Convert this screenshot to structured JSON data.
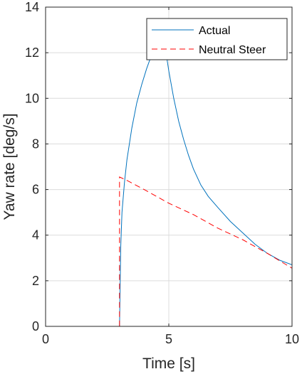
{
  "chart_data": {
    "type": "line",
    "title": "",
    "xlabel": "Time [s]",
    "ylabel": "Yaw rate [deg/s]",
    "xlim": [
      0,
      10
    ],
    "ylim": [
      0,
      14
    ],
    "xticks": [
      0,
      5,
      10
    ],
    "yticks": [
      0,
      2,
      4,
      6,
      8,
      10,
      12,
      14
    ],
    "xtick_labels": [
      "0",
      "5",
      "10"
    ],
    "ytick_labels": [
      "0",
      "2",
      "4",
      "6",
      "8",
      "10",
      "12",
      "14"
    ],
    "grid": true,
    "legend": {
      "placement": "top-right"
    },
    "series": [
      {
        "name": "Actual",
        "color": "#0072bd",
        "style": "solid",
        "x": [
          0,
          3.0,
          3.05,
          3.1,
          3.2,
          3.3,
          3.4,
          3.5,
          3.7,
          3.9,
          4.1,
          4.3,
          4.5,
          4.6,
          4.7,
          4.8,
          4.9,
          5.0,
          5.2,
          5.4,
          5.6,
          5.8,
          6.0,
          6.3,
          6.6,
          7.0,
          7.5,
          8.0,
          8.5,
          9.0,
          9.5,
          10.0
        ],
        "y": [
          0,
          0,
          3.5,
          5.0,
          6.3,
          7.3,
          8.0,
          8.7,
          9.8,
          10.6,
          11.3,
          11.9,
          12.4,
          12.5,
          12.45,
          12.3,
          11.9,
          11.2,
          10.0,
          9.0,
          8.2,
          7.5,
          6.9,
          6.2,
          5.7,
          5.2,
          4.6,
          4.1,
          3.6,
          3.2,
          2.9,
          2.7
        ]
      },
      {
        "name": "Neutral Steer",
        "color": "#ff0000",
        "style": "dashed",
        "x": [
          0,
          3.0,
          3.0,
          3.3,
          4.0,
          5.0,
          6.0,
          7.0,
          8.0,
          9.0,
          10.0
        ],
        "y": [
          0,
          0,
          6.55,
          6.4,
          6.0,
          5.4,
          4.9,
          4.3,
          3.8,
          3.2,
          2.55
        ]
      }
    ]
  }
}
